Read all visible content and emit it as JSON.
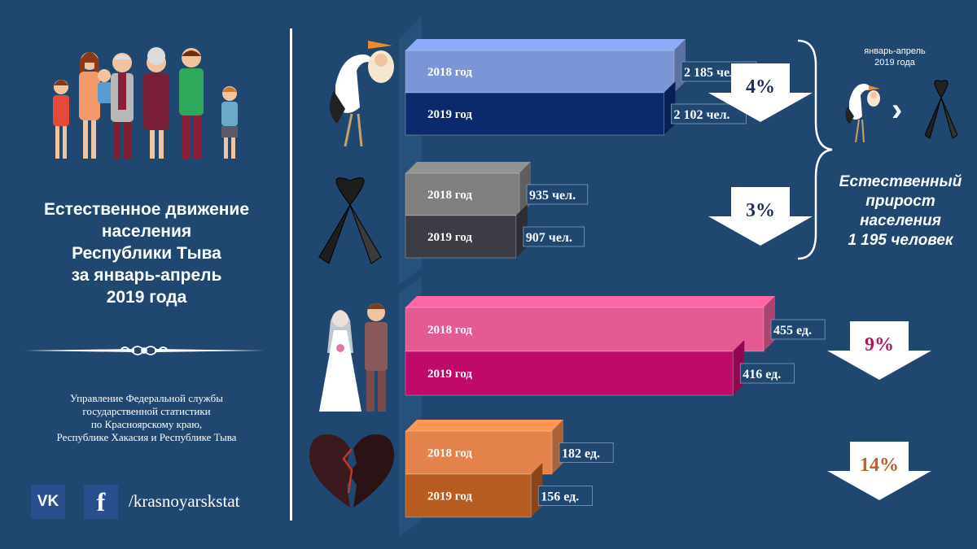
{
  "title": {
    "line1": "Естественное движение",
    "line2": "населения",
    "line3": "Республики Тыва",
    "line4": "за январь-апрель",
    "line5": "2019 года"
  },
  "org": {
    "line1": "Управление Федеральной службы",
    "line2": "государственной статистики",
    "line3": "по Красноярскому краю,",
    "line4": "Республике Хакасия и Республике Тыва"
  },
  "social": {
    "vk": "VK",
    "fb": "f",
    "handle": "/krasnoyarskstat"
  },
  "side": {
    "period_line1": "январь-апрель",
    "period_line2": "2019 года",
    "growth_line1": "Естественный",
    "growth_line2": "прирост",
    "growth_line3": "населения",
    "growth_line4": "1 195 человек"
  },
  "colors": {
    "background": "#1f4770",
    "births_2018": "#7b95d6",
    "births_2019": "#0b2a6e",
    "deaths_2018": "#7f7f7f",
    "deaths_2019": "#3c3c44",
    "marriages_2018": "#e45a93",
    "marriages_2019": "#bf0a6a",
    "divorces_2018": "#e3824a",
    "divorces_2019": "#b85d22",
    "pct_marriages": "#b0175f",
    "pct_divorces": "#c0602a"
  },
  "chart_data": {
    "type": "bar",
    "orientation": "horizontal",
    "groups": [
      {
        "key": "births",
        "icon": "stork-icon",
        "change_label": "4%",
        "bars": [
          {
            "year": "2018 год",
            "value": 2185,
            "label": "2 185 чел."
          },
          {
            "year": "2019 год",
            "value": 2102,
            "label": "2 102 чел."
          }
        ]
      },
      {
        "key": "deaths",
        "icon": "mourning-ribbon-icon",
        "change_label": "3%",
        "bars": [
          {
            "year": "2018 год",
            "value": 935,
            "label": "935 чел."
          },
          {
            "year": "2019 год",
            "value": 907,
            "label": "907 чел."
          }
        ]
      },
      {
        "key": "marriages",
        "icon": "wedding-couple-icon",
        "change_label": "9%",
        "bars": [
          {
            "year": "2018 год",
            "value": 455,
            "label": "455 ед."
          },
          {
            "year": "2019 год",
            "value": 416,
            "label": "416 ед."
          }
        ]
      },
      {
        "key": "divorces",
        "icon": "broken-heart-icon",
        "change_label": "14%",
        "bars": [
          {
            "year": "2018 год",
            "value": 182,
            "label": "182 ед."
          },
          {
            "year": "2019 год",
            "value": 156,
            "label": "156 ед."
          }
        ]
      }
    ]
  }
}
